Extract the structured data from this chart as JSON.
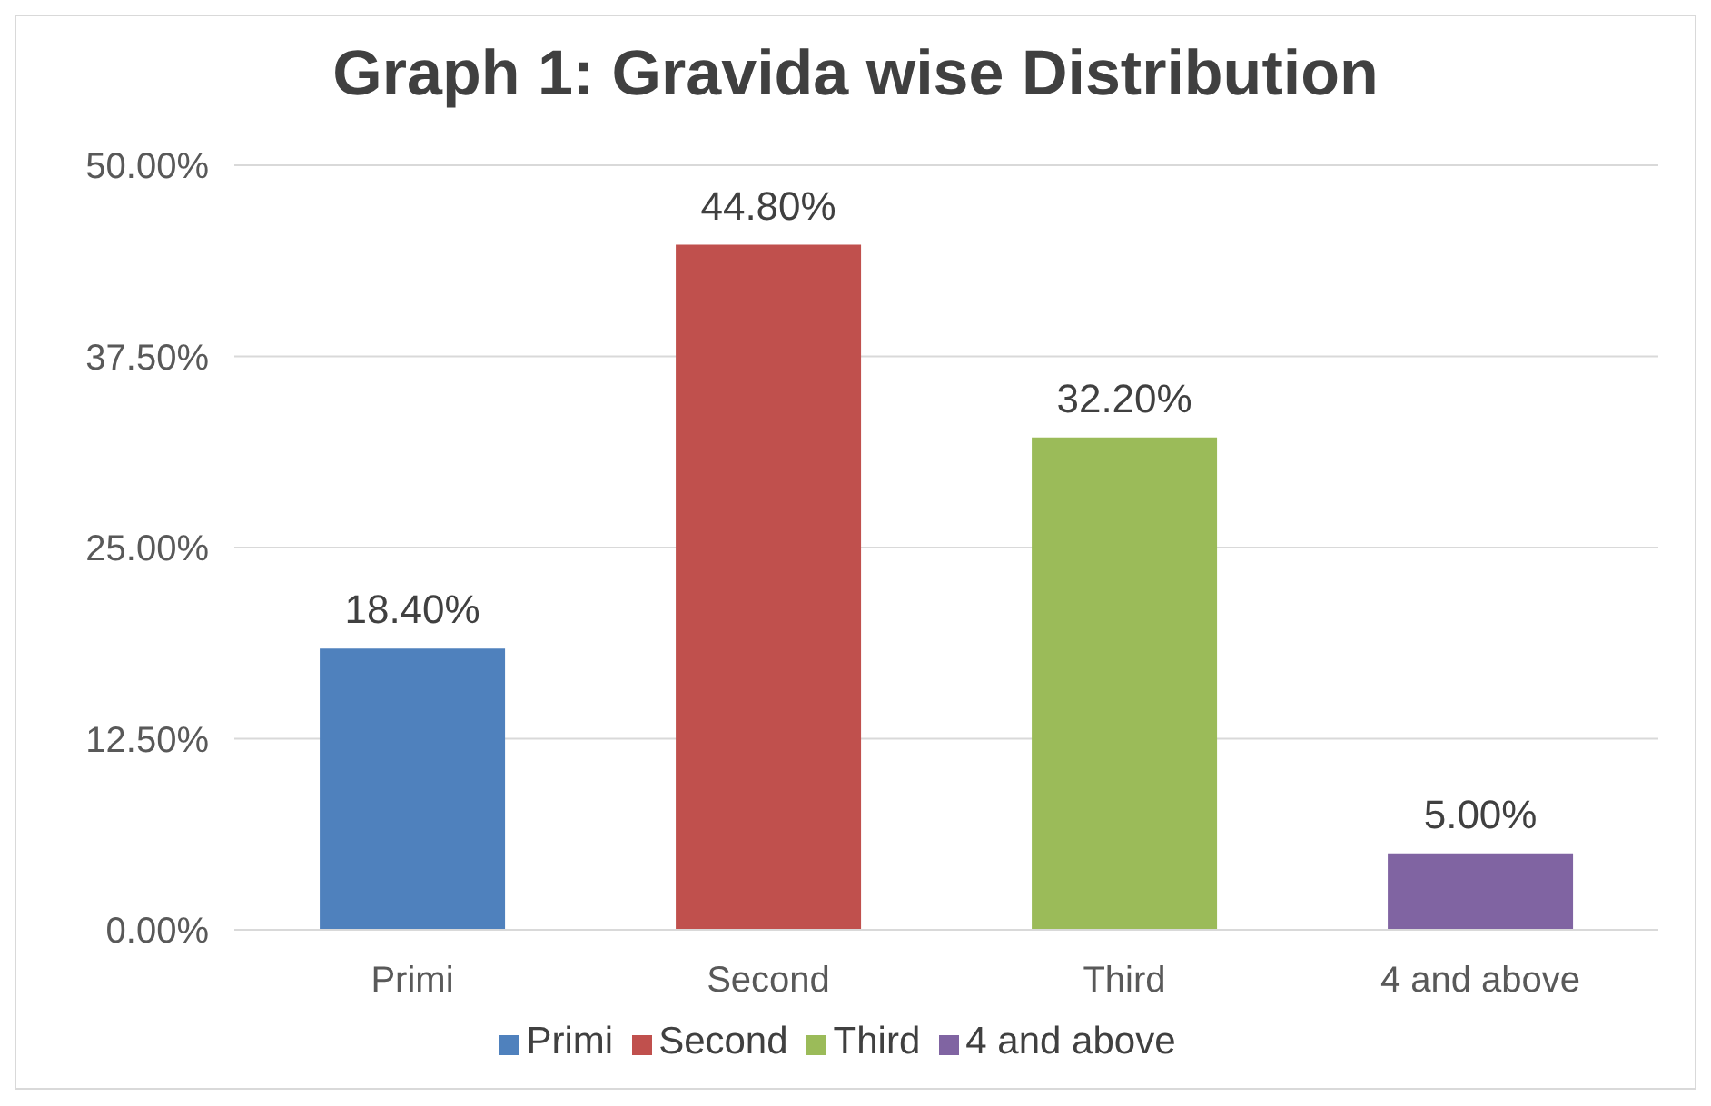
{
  "chart_data": {
    "type": "bar",
    "title": "Graph 1: Gravida wise Distribution",
    "categories": [
      "Primi",
      "Second",
      "Third",
      "4 and above"
    ],
    "stacked": true,
    "series": [
      {
        "name": "Primi",
        "color": "#4f81bd",
        "values": [
          18.4,
          null,
          null,
          null
        ],
        "value_labels": [
          "18.40%",
          null,
          null,
          null
        ]
      },
      {
        "name": "Second",
        "color": "#c0504d",
        "values": [
          null,
          44.8,
          null,
          null
        ],
        "value_labels": [
          null,
          "44.80%",
          null,
          null
        ]
      },
      {
        "name": "Third",
        "color": "#9bbb59",
        "values": [
          null,
          null,
          32.2,
          null
        ],
        "value_labels": [
          null,
          null,
          "32.20%",
          null
        ]
      },
      {
        "name": "4 and above",
        "color": "#8064a2",
        "values": [
          null,
          null,
          null,
          5.0
        ],
        "value_labels": [
          null,
          null,
          null,
          "5.00%"
        ]
      }
    ],
    "ylim": [
      0,
      50
    ],
    "yticks": [
      {
        "value": 0,
        "label": "0.00%"
      },
      {
        "value": 12.5,
        "label": "12.50%"
      },
      {
        "value": 25,
        "label": "25.00%"
      },
      {
        "value": 37.5,
        "label": "37.50%"
      },
      {
        "value": 50,
        "label": "50.00%"
      }
    ],
    "grid": "y",
    "legend": "bottom"
  }
}
